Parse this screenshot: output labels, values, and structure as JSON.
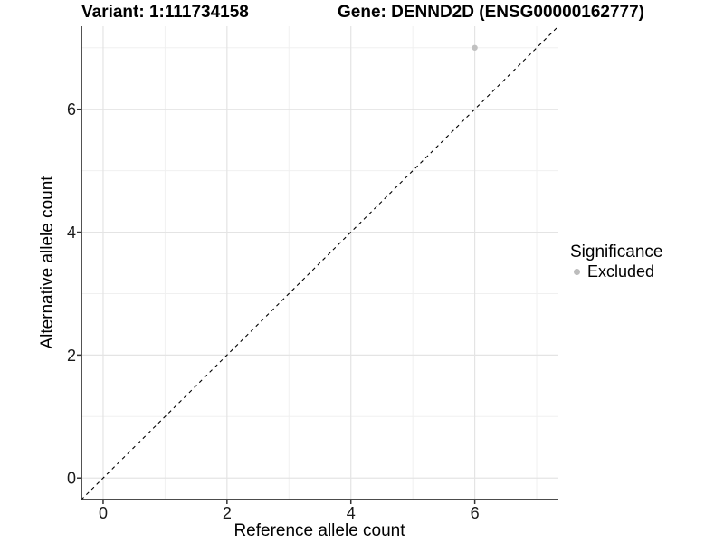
{
  "chart_data": {
    "type": "scatter",
    "title_left": "Variant: 1:111734158",
    "title_right": "Gene: DENND2D (ENSG00000162777)",
    "xlabel": "Reference allele count",
    "ylabel": "Alternative allele count",
    "xlim": [
      -0.35,
      7.35
    ],
    "ylim": [
      -0.35,
      7.35
    ],
    "xticks": [
      0,
      2,
      4,
      6
    ],
    "yticks": [
      0,
      2,
      4,
      6
    ],
    "minor_gridlines_x": [
      1,
      3,
      5,
      7
    ],
    "minor_gridlines_y": [
      1,
      3,
      5,
      7
    ],
    "grid": true,
    "points": [
      {
        "x": 6,
        "y": 7,
        "significance": "Excluded"
      }
    ],
    "reference_line": {
      "slope": 1,
      "intercept": 0,
      "style": "dashed",
      "color": "#000000"
    },
    "legend": {
      "title": "Significance",
      "position": "right",
      "items": [
        {
          "label": "Excluded",
          "color": "#bdbdbd"
        }
      ]
    },
    "colors": {
      "point": "#c1c1c1",
      "grid_major": "#e4e4e4",
      "grid_minor": "#f0f0f0",
      "axis_line": "#333333",
      "tick_text": "#1a1a1a",
      "label_text": "#000000"
    }
  }
}
